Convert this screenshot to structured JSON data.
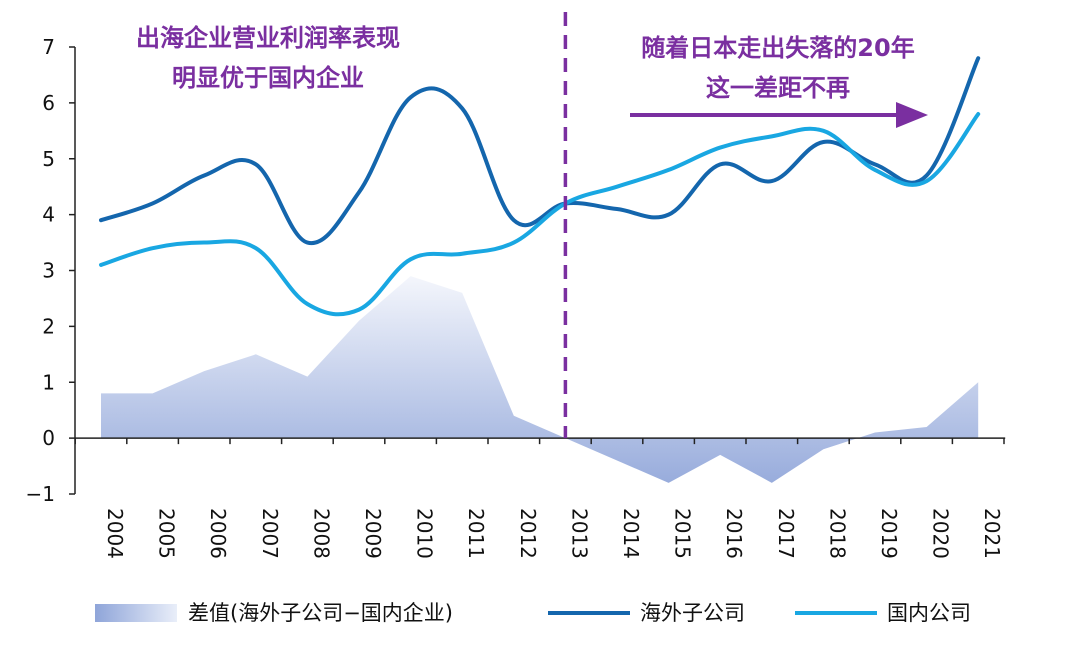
{
  "chart_data": {
    "type": "line",
    "categories": [
      "2004",
      "2005",
      "2006",
      "2007",
      "2008",
      "2009",
      "2010",
      "2011",
      "2012",
      "2013",
      "2014",
      "2015",
      "2016",
      "2017",
      "2018",
      "2019",
      "2020",
      "2021"
    ],
    "ylim": [
      -1,
      7
    ],
    "yticks": [
      -1,
      0,
      1,
      2,
      3,
      4,
      5,
      6,
      7
    ],
    "ytick_labels": [
      "−1",
      "0",
      "1",
      "2",
      "3",
      "4",
      "5",
      "6",
      "7"
    ],
    "grid": false,
    "legend_position": "bottom",
    "series": [
      {
        "name": "差值(海外子公司−国内企业)",
        "kind": "area",
        "color": "#aab8e2",
        "values": [
          0.8,
          0.8,
          1.2,
          1.5,
          1.1,
          2.1,
          2.9,
          2.6,
          0.4,
          0.0,
          -0.4,
          -0.8,
          -0.3,
          -0.8,
          -0.2,
          0.1,
          0.2,
          1.0
        ]
      },
      {
        "name": "海外子公司",
        "kind": "line",
        "color": "#1466ad",
        "values": [
          3.9,
          4.2,
          4.7,
          4.9,
          3.5,
          4.4,
          6.1,
          5.9,
          3.9,
          4.2,
          4.1,
          4.0,
          4.9,
          4.6,
          5.3,
          4.9,
          4.7,
          6.8
        ]
      },
      {
        "name": "国内公司",
        "kind": "line",
        "color": "#19a7e2",
        "values": [
          3.1,
          3.4,
          3.5,
          3.4,
          2.4,
          2.3,
          3.2,
          3.3,
          3.5,
          4.2,
          4.5,
          4.8,
          5.2,
          5.4,
          5.5,
          4.8,
          4.6,
          5.8
        ]
      }
    ],
    "divider_at": "2013",
    "annotations": {
      "left_line1": "出海企业营业利润率表现",
      "left_line2": "明显优于国内企业",
      "right_line1": "随着日本走出失落的20年",
      "right_line2": "这一差距不再"
    },
    "colors": {
      "annotation": "#7a2fa0",
      "divider": "#7a2fa0",
      "arrow": "#7a2fa0"
    }
  }
}
